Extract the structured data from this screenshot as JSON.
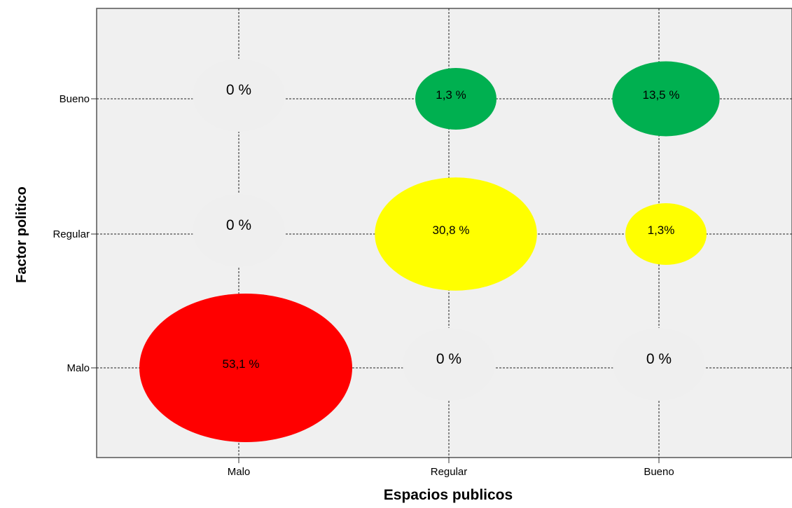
{
  "chart_data": {
    "type": "bubble",
    "title": "",
    "xlabel": "Espacios publicos",
    "ylabel": "Factor politico",
    "x_categories": [
      "Malo",
      "Regular",
      "Bueno"
    ],
    "y_categories": [
      "Malo",
      "Regular",
      "Bueno"
    ],
    "grid": true,
    "points": [
      {
        "x": "Malo",
        "y": "Bueno",
        "value": 0,
        "label": "0 %",
        "color": "#efefef"
      },
      {
        "x": "Regular",
        "y": "Bueno",
        "value": 1.3,
        "label": "1,3 %",
        "color": "#00b050"
      },
      {
        "x": "Bueno",
        "y": "Bueno",
        "value": 13.5,
        "label": "13,5 %",
        "color": "#00b050"
      },
      {
        "x": "Malo",
        "y": "Regular",
        "value": 0,
        "label": "0 %",
        "color": "#efefef"
      },
      {
        "x": "Regular",
        "y": "Regular",
        "value": 30.8,
        "label": "30,8 %",
        "color": "#ffff00"
      },
      {
        "x": "Bueno",
        "y": "Regular",
        "value": 1.3,
        "label": "1,3%",
        "color": "#ffff00"
      },
      {
        "x": "Malo",
        "y": "Malo",
        "value": 53.1,
        "label": "53,1 %",
        "color": "#ff0000"
      },
      {
        "x": "Regular",
        "y": "Malo",
        "value": 0,
        "label": "0 %",
        "color": "#efefef"
      },
      {
        "x": "Bueno",
        "y": "Malo",
        "value": 0,
        "label": "0 %",
        "color": "#efefef"
      }
    ],
    "plot_background": "#f0f0f0"
  }
}
